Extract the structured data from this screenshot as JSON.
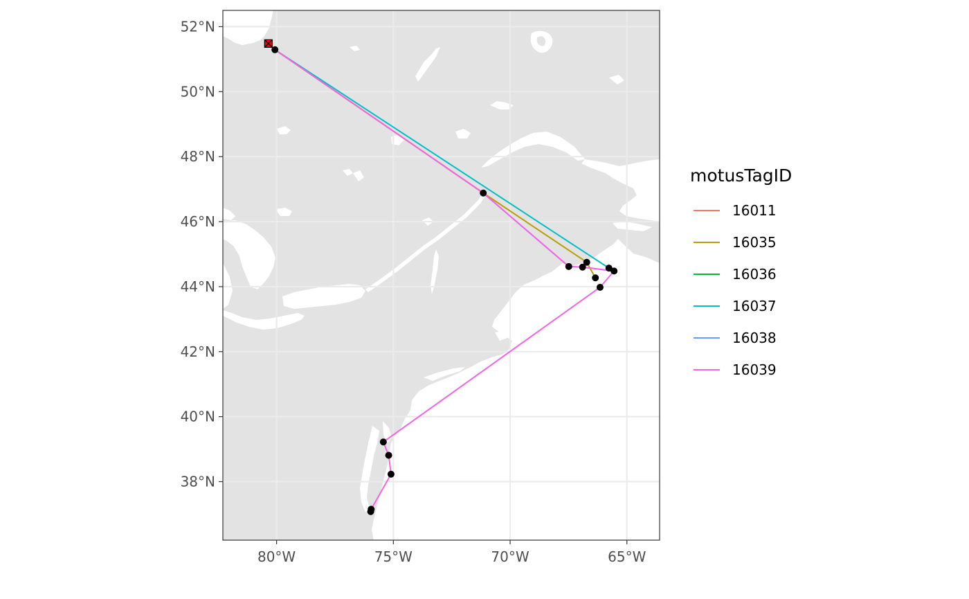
{
  "map": {
    "x_axis": {
      "ticks": [
        {
          "lon": -80,
          "label": "80°W"
        },
        {
          "lon": -75,
          "label": "75°W"
        },
        {
          "lon": -70,
          "label": "70°W"
        },
        {
          "lon": -65,
          "label": "65°W"
        }
      ],
      "range": [
        -82.3,
        -63.6
      ]
    },
    "y_axis": {
      "ticks": [
        {
          "lat": 38,
          "label": "38°N"
        },
        {
          "lat": 40,
          "label": "40°N"
        },
        {
          "lat": 42,
          "label": "42°N"
        },
        {
          "lat": 44,
          "label": "44°N"
        },
        {
          "lat": 46,
          "label": "46°N"
        },
        {
          "lat": 48,
          "label": "48°N"
        },
        {
          "lat": 50,
          "label": "50°N"
        },
        {
          "lat": 52,
          "label": "52°N"
        }
      ],
      "range": [
        36.2,
        52.5
      ]
    },
    "colors": {
      "land": "#e3e3e3",
      "water": "#ffffff",
      "grid": "#ebebeb",
      "point": "#000000",
      "release_marker": "#ff0000"
    },
    "release_site": {
      "lon": -80.35,
      "lat": 51.48
    },
    "detections": [
      {
        "lon": -80.07,
        "lat": 51.29
      },
      {
        "lon": -71.15,
        "lat": 46.88
      },
      {
        "lon": -67.49,
        "lat": 44.62
      },
      {
        "lon": -66.9,
        "lat": 44.6
      },
      {
        "lon": -66.72,
        "lat": 44.75
      },
      {
        "lon": -65.77,
        "lat": 44.57
      },
      {
        "lon": -65.55,
        "lat": 44.48
      },
      {
        "lon": -66.35,
        "lat": 44.27
      },
      {
        "lon": -66.15,
        "lat": 43.98
      },
      {
        "lon": -75.43,
        "lat": 39.22
      },
      {
        "lon": -75.2,
        "lat": 38.81
      },
      {
        "lon": -75.1,
        "lat": 38.23
      },
      {
        "lon": -75.95,
        "lat": 37.15
      },
      {
        "lon": -75.97,
        "lat": 37.08
      }
    ],
    "tracks": [
      {
        "tag": "16037",
        "points": [
          [
            -80.07,
            51.29
          ],
          [
            -65.77,
            44.57
          ],
          [
            -65.55,
            44.48
          ]
        ]
      },
      {
        "tag": "16038",
        "points": [
          [
            -80.07,
            51.29
          ],
          [
            -71.15,
            46.88
          ],
          [
            -67.49,
            44.62
          ],
          [
            -66.9,
            44.6
          ],
          [
            -65.55,
            44.48
          ]
        ]
      },
      {
        "tag": "16035",
        "points": [
          [
            -80.07,
            51.29
          ],
          [
            -71.15,
            46.88
          ],
          [
            -66.72,
            44.75
          ],
          [
            -66.35,
            44.27
          ]
        ]
      },
      {
        "tag": "16039",
        "points": [
          [
            -80.07,
            51.29
          ],
          [
            -71.15,
            46.88
          ],
          [
            -67.49,
            44.62
          ],
          [
            -66.9,
            44.6
          ],
          [
            -65.55,
            44.48
          ],
          [
            -66.15,
            43.98
          ],
          [
            -75.43,
            39.22
          ],
          [
            -75.2,
            38.81
          ],
          [
            -75.1,
            38.23
          ],
          [
            -75.95,
            37.15
          ]
        ]
      }
    ]
  },
  "legend": {
    "title": "motusTagID",
    "entries": [
      {
        "tag": "16011",
        "color": "#f8766d"
      },
      {
        "tag": "16035",
        "color": "#b79f00"
      },
      {
        "tag": "16036",
        "color": "#00ba38"
      },
      {
        "tag": "16037",
        "color": "#00bfc4"
      },
      {
        "tag": "16038",
        "color": "#619cff"
      },
      {
        "tag": "16039",
        "color": "#f564e3"
      }
    ]
  }
}
